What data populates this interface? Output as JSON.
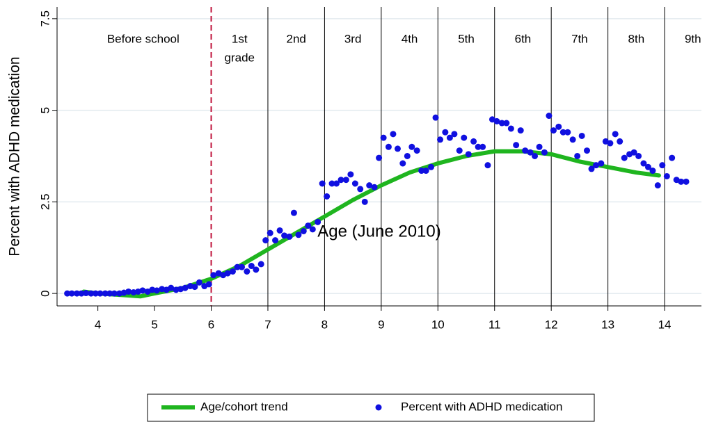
{
  "chart_data": {
    "type": "scatter",
    "x_label": "Age (June 2010)",
    "y_label": "Percent with ADHD medication",
    "xlim": [
      3.28,
      14.65
    ],
    "ylim": [
      -0.34,
      7.82
    ],
    "xticks": [
      4,
      5,
      6,
      7,
      8,
      9,
      10,
      11,
      12,
      13,
      14
    ],
    "yticks": [
      0,
      2.5,
      5,
      7.5
    ],
    "grid": true,
    "legend": "bottom",
    "cutoff": 6,
    "cutoff_color": "#c0143c",
    "grade_lines": [
      7,
      8,
      9,
      10,
      11,
      12,
      13,
      14
    ],
    "annotations": [
      {
        "x": 4.8,
        "lines": [
          "Before school"
        ]
      },
      {
        "x": 6.5,
        "lines": [
          "1st",
          "grade"
        ]
      },
      {
        "x": 7.5,
        "lines": [
          "2nd"
        ]
      },
      {
        "x": 8.5,
        "lines": [
          "3rd"
        ]
      },
      {
        "x": 9.5,
        "lines": [
          "4th"
        ]
      },
      {
        "x": 10.5,
        "lines": [
          "5th"
        ]
      },
      {
        "x": 11.5,
        "lines": [
          "6th"
        ]
      },
      {
        "x": 12.5,
        "lines": [
          "7th"
        ]
      },
      {
        "x": 13.5,
        "lines": [
          "8th"
        ]
      },
      {
        "x": 14.5,
        "lines": [
          "9th"
        ]
      }
    ],
    "series": [
      {
        "name": "Age/cohort trend",
        "type": "line",
        "color": "#1fb51f",
        "x": [
          3.75,
          4.0,
          4.5,
          4.75,
          5.0,
          5.5,
          6.0,
          6.5,
          7.0,
          7.5,
          8.0,
          8.5,
          9.0,
          9.5,
          10.0,
          10.5,
          11.0,
          11.5,
          12.0,
          12.5,
          13.0,
          13.5,
          13.9
        ],
        "values": [
          0.05,
          0.0,
          -0.05,
          -0.08,
          0.0,
          0.15,
          0.4,
          0.75,
          1.2,
          1.65,
          2.1,
          2.55,
          2.95,
          3.3,
          3.55,
          3.75,
          3.88,
          3.88,
          3.8,
          3.6,
          3.45,
          3.3,
          3.22
        ]
      },
      {
        "name": "Percent with ADHD medication",
        "type": "scatter",
        "color": "#1010e0",
        "x": [
          3.46,
          3.54,
          3.63,
          3.71,
          3.79,
          3.88,
          3.96,
          4.04,
          4.13,
          4.21,
          4.29,
          4.38,
          4.46,
          4.54,
          4.63,
          4.71,
          4.79,
          4.88,
          4.96,
          5.04,
          5.13,
          5.21,
          5.29,
          5.38,
          5.46,
          5.54,
          5.63,
          5.71,
          5.79,
          5.88,
          5.96,
          6.04,
          6.13,
          6.21,
          6.29,
          6.38,
          6.46,
          6.54,
          6.63,
          6.71,
          6.79,
          6.88,
          6.96,
          7.04,
          7.13,
          7.21,
          7.29,
          7.38,
          7.46,
          7.54,
          7.63,
          7.71,
          7.79,
          7.88,
          7.96,
          8.04,
          8.13,
          8.21,
          8.29,
          8.38,
          8.46,
          8.54,
          8.63,
          8.71,
          8.79,
          8.88,
          8.96,
          9.04,
          9.13,
          9.21,
          9.29,
          9.38,
          9.46,
          9.54,
          9.63,
          9.71,
          9.79,
          9.88,
          9.96,
          10.04,
          10.13,
          10.21,
          10.29,
          10.38,
          10.46,
          10.54,
          10.63,
          10.71,
          10.79,
          10.88,
          10.96,
          11.04,
          11.13,
          11.21,
          11.29,
          11.38,
          11.46,
          11.54,
          11.63,
          11.71,
          11.79,
          11.88,
          11.96,
          12.04,
          12.13,
          12.21,
          12.29,
          12.38,
          12.46,
          12.54,
          12.63,
          12.71,
          12.79,
          12.88,
          12.96,
          13.04,
          13.13,
          13.21,
          13.29,
          13.38,
          13.46,
          13.54,
          13.63,
          13.71,
          13.79,
          13.88,
          13.96,
          14.04,
          14.13,
          14.21,
          14.29,
          14.38
        ],
        "values": [
          0.0,
          0.0,
          0.0,
          0.0,
          0.01,
          0.0,
          0.0,
          0.0,
          0.0,
          0.0,
          0.0,
          0.0,
          0.02,
          0.05,
          0.03,
          0.05,
          0.08,
          0.05,
          0.1,
          0.08,
          0.12,
          0.1,
          0.15,
          0.1,
          0.12,
          0.15,
          0.2,
          0.18,
          0.3,
          0.2,
          0.25,
          0.5,
          0.55,
          0.5,
          0.55,
          0.6,
          0.72,
          0.72,
          0.6,
          0.75,
          0.65,
          0.8,
          1.45,
          1.65,
          1.45,
          1.72,
          1.58,
          1.55,
          2.2,
          1.6,
          1.7,
          1.85,
          1.75,
          1.95,
          3.0,
          2.65,
          3.0,
          3.0,
          3.1,
          3.1,
          3.25,
          3.0,
          2.85,
          2.5,
          2.95,
          2.9,
          3.7,
          4.25,
          4.0,
          4.35,
          3.95,
          3.55,
          3.75,
          4.0,
          3.9,
          3.35,
          3.35,
          3.45,
          4.8,
          4.2,
          4.4,
          4.25,
          4.35,
          3.9,
          4.25,
          3.8,
          4.15,
          4.0,
          4.0,
          3.5,
          4.75,
          4.7,
          4.65,
          4.65,
          4.5,
          4.05,
          4.45,
          3.9,
          3.85,
          3.75,
          4.0,
          3.85,
          4.85,
          4.45,
          4.55,
          4.4,
          4.4,
          4.2,
          3.75,
          4.3,
          3.9,
          3.4,
          3.5,
          3.55,
          4.15,
          4.1,
          4.35,
          4.15,
          3.7,
          3.8,
          3.85,
          3.75,
          3.55,
          3.45,
          3.35,
          2.95,
          3.5,
          3.2,
          3.7,
          3.1,
          3.05,
          3.05
        ]
      }
    ]
  }
}
